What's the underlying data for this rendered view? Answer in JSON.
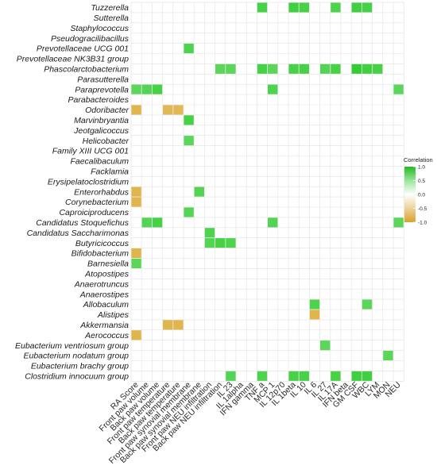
{
  "chart_data": {
    "type": "heatmap",
    "rows": [
      "Tuzzerella",
      "Sutterella",
      "Staphylococcus",
      "Pseudogracilibacillus",
      "Prevotellaceae UCG 001",
      "Prevotellaceae NK3B31 group",
      "Phascolarctobacterium",
      "Parasutterella",
      "Paraprevotella",
      "Parabacteroides",
      "Odoribacter",
      "Marvinbryantia",
      "Jeotgalicoccus",
      "Helicobacter",
      "Family XIII UCG 001",
      "Faecalibaculum",
      "Facklamia",
      "Erysipelatoclostridium",
      "Enterorhabdus",
      "Corynebacterium",
      "Caproiciproducens",
      "Candidatus Stoquefichus",
      "Candidatus Saccharimonas",
      "Butyricicoccus",
      "Bifidobacterium",
      "Barnesiella",
      "Atopostipes",
      "Anaerotruncus",
      "Anaerostipes",
      "Allobaculum",
      "Alistipes",
      "Akkermansia",
      "Aerococcus",
      "Eubacterium ventriosum group",
      "Eubacterium nodatum group",
      "Eubacterium brachy group",
      "Clostridium innocuum group"
    ],
    "columns": [
      "RA Score",
      "Front paw volume",
      "Back paw volume",
      "Front paw temperature",
      "Back paw temperature",
      "Front paw synovial membrane",
      "Back paw synovial membrane",
      "Front paw NEU infiltration",
      "Back paw NEU infiltration",
      "IL 23",
      "IL 1alpha",
      "IFN gamma",
      "TNF a",
      "MCP 1",
      "IL 12p70",
      "IL 1beta",
      "IL 10",
      "IL 6",
      "IL 27",
      "IL 17A",
      "IFN beta",
      "GM CSF",
      "WBC",
      "LYM",
      "MON",
      "NEU"
    ],
    "cells": [
      [
        0,
        12,
        0.85
      ],
      [
        0,
        15,
        0.9
      ],
      [
        0,
        16,
        0.85
      ],
      [
        0,
        19,
        0.8
      ],
      [
        0,
        21,
        0.9
      ],
      [
        0,
        22,
        0.85
      ],
      [
        4,
        5,
        0.8
      ],
      [
        6,
        8,
        0.7
      ],
      [
        6,
        9,
        0.7
      ],
      [
        6,
        12,
        0.85
      ],
      [
        6,
        13,
        0.7
      ],
      [
        6,
        15,
        0.85
      ],
      [
        6,
        16,
        0.85
      ],
      [
        6,
        18,
        0.75
      ],
      [
        6,
        19,
        0.85
      ],
      [
        6,
        21,
        1.0
      ],
      [
        6,
        22,
        0.9
      ],
      [
        6,
        23,
        0.85
      ],
      [
        8,
        0,
        0.7
      ],
      [
        8,
        1,
        0.75
      ],
      [
        8,
        2,
        0.85
      ],
      [
        8,
        13,
        0.8
      ],
      [
        8,
        25,
        0.7
      ],
      [
        10,
        0,
        -0.8
      ],
      [
        10,
        3,
        -0.75
      ],
      [
        10,
        4,
        -0.75
      ],
      [
        11,
        5,
        0.85
      ],
      [
        13,
        5,
        0.7
      ],
      [
        18,
        0,
        -0.8
      ],
      [
        18,
        6,
        0.75
      ],
      [
        19,
        0,
        -0.8
      ],
      [
        20,
        5,
        0.75
      ],
      [
        21,
        1,
        0.75
      ],
      [
        21,
        2,
        0.85
      ],
      [
        21,
        13,
        0.75
      ],
      [
        21,
        25,
        0.7
      ],
      [
        22,
        7,
        0.8
      ],
      [
        23,
        7,
        0.75
      ],
      [
        23,
        8,
        0.85
      ],
      [
        23,
        9,
        0.8
      ],
      [
        24,
        0,
        -0.8
      ],
      [
        25,
        0,
        0.7
      ],
      [
        29,
        17,
        0.8
      ],
      [
        29,
        22,
        0.7
      ],
      [
        30,
        17,
        -0.8
      ],
      [
        31,
        3,
        -0.8
      ],
      [
        31,
        4,
        -0.8
      ],
      [
        32,
        0,
        -0.8
      ],
      [
        33,
        18,
        0.7
      ],
      [
        34,
        24,
        0.7
      ],
      [
        36,
        9,
        0.75
      ],
      [
        36,
        12,
        0.8
      ],
      [
        36,
        15,
        0.85
      ],
      [
        36,
        16,
        0.85
      ],
      [
        36,
        19,
        0.85
      ],
      [
        36,
        21,
        0.9
      ],
      [
        36,
        22,
        0.9
      ]
    ],
    "legend": {
      "title": "Correlation",
      "ticks": [
        "1.0",
        "0.5",
        "0.0",
        "-0.5",
        "-1.0"
      ],
      "range": [
        -1,
        1
      ],
      "colors": {
        "positive": "#33cc33",
        "zero": "#ffffff",
        "negative": "#dcaa33"
      }
    },
    "grid": true,
    "legend_position": "right"
  }
}
